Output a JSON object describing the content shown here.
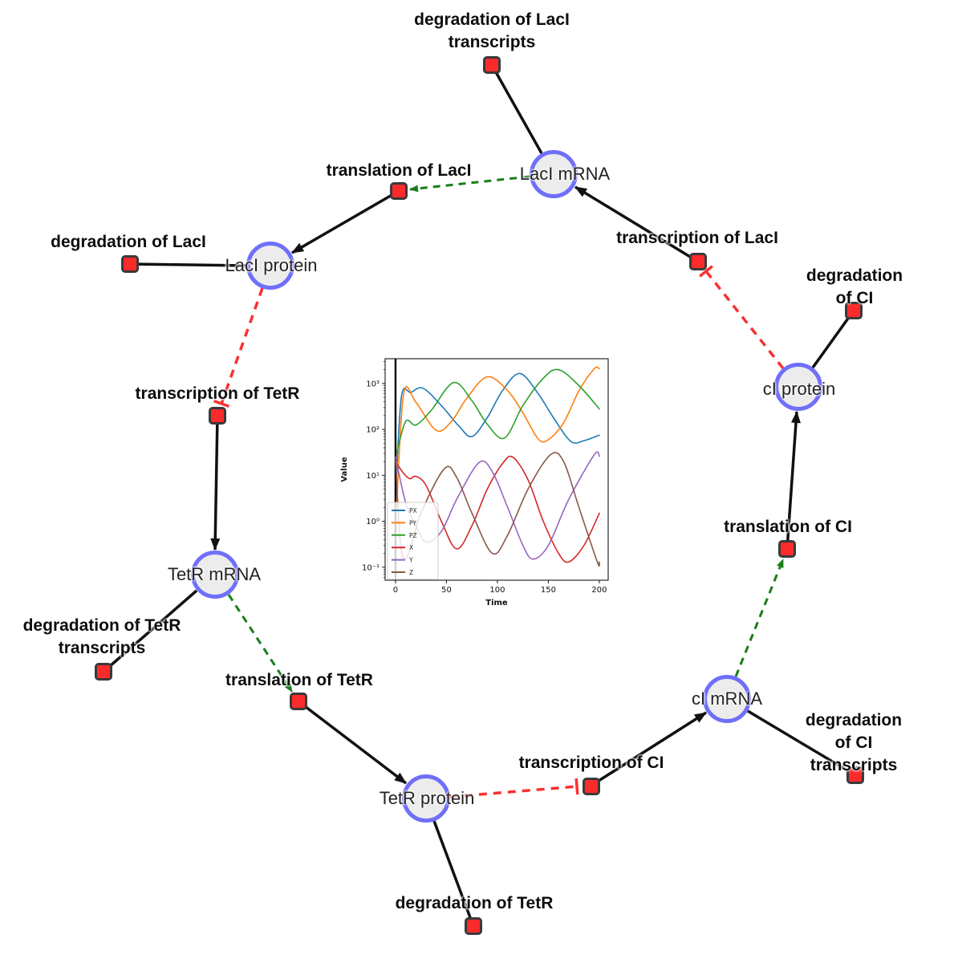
{
  "diagram": {
    "colors": {
      "species_fill": "#ececec",
      "species_border": "#6f6ffa",
      "reaction_fill": "#fb2b2b",
      "reaction_border": "#3a3a3a",
      "edge_black": "#111111",
      "edge_modifier_green": "#1a7e1a",
      "edge_inhibition_red": "#f93131"
    },
    "species": [
      {
        "id": "laci-mrna",
        "label": "LacI mRNA"
      },
      {
        "id": "laci-protein",
        "label": "LacI protein"
      },
      {
        "id": "tetr-mrna",
        "label": "TetR mRNA"
      },
      {
        "id": "tetr-protein",
        "label": "TetR protein"
      },
      {
        "id": "ci-mrna",
        "label": "cI mRNA"
      },
      {
        "id": "ci-protein",
        "label": "cI protein"
      }
    ],
    "reactions": [
      {
        "id": "deg-laci-transcripts",
        "label": "degradation of LacI\ntranscripts"
      },
      {
        "id": "translation-laci",
        "label": "translation of LacI"
      },
      {
        "id": "transcription-laci",
        "label": "transcription of LacI"
      },
      {
        "id": "deg-laci",
        "label": "degradation of LacI"
      },
      {
        "id": "deg-ci",
        "label": "degradation of CI"
      },
      {
        "id": "transcription-tetr",
        "label": "transcription of TetR"
      },
      {
        "id": "translation-ci",
        "label": "translation of CI"
      },
      {
        "id": "deg-tetr-transcripts",
        "label": "degradation of TetR\ntranscripts"
      },
      {
        "id": "translation-tetr",
        "label": "translation of TetR"
      },
      {
        "id": "transcription-ci",
        "label": "transcription of CI"
      },
      {
        "id": "deg-ci-transcripts",
        "label": "degradation of CI\ntranscripts"
      },
      {
        "id": "deg-tetr",
        "label": "degradation of TetR"
      }
    ],
    "edges": [
      {
        "from": "LacI mRNA",
        "to": "degradation of LacI transcripts",
        "type": "reactant-line"
      },
      {
        "from": "LacI mRNA",
        "to": "translation of LacI",
        "type": "modifier-green-dashed"
      },
      {
        "from": "translation of LacI",
        "to": "LacI protein",
        "type": "product-arrow"
      },
      {
        "from": "transcription of LacI",
        "to": "LacI mRNA",
        "type": "product-arrow"
      },
      {
        "from": "LacI protein",
        "to": "degradation of LacI",
        "type": "reactant-line"
      },
      {
        "from": "LacI protein",
        "to": "transcription of TetR",
        "type": "inhibition-red-dashed"
      },
      {
        "from": "transcription of TetR",
        "to": "TetR mRNA",
        "type": "product-arrow"
      },
      {
        "from": "TetR mRNA",
        "to": "degradation of TetR transcripts",
        "type": "reactant-line"
      },
      {
        "from": "TetR mRNA",
        "to": "translation of TetR",
        "type": "modifier-green-dashed"
      },
      {
        "from": "translation of TetR",
        "to": "TetR protein",
        "type": "product-arrow"
      },
      {
        "from": "TetR protein",
        "to": "degradation of TetR",
        "type": "reactant-line"
      },
      {
        "from": "TetR protein",
        "to": "transcription of CI",
        "type": "inhibition-red-dashed"
      },
      {
        "from": "transcription of CI",
        "to": "cI mRNA",
        "type": "product-arrow"
      },
      {
        "from": "cI mRNA",
        "to": "degradation of CI transcripts",
        "type": "reactant-line"
      },
      {
        "from": "cI mRNA",
        "to": "translation of CI",
        "type": "modifier-green-dashed"
      },
      {
        "from": "translation of CI",
        "to": "cI protein",
        "type": "product-arrow"
      },
      {
        "from": "cI protein",
        "to": "degradation of CI",
        "type": "reactant-line"
      },
      {
        "from": "cI protein",
        "to": "transcription of LacI",
        "type": "inhibition-red-dashed"
      }
    ]
  },
  "chart_data": {
    "type": "line",
    "title": "",
    "xlabel": "Time",
    "ylabel": "Value",
    "y_scale": "log",
    "x_ticks": [
      0,
      50,
      100,
      150,
      200
    ],
    "y_ticks": [
      {
        "log": 3,
        "label": "10³"
      },
      {
        "log": 2,
        "label": "10²"
      },
      {
        "log": 1,
        "label": "10¹"
      },
      {
        "log": 0,
        "label": "10⁰"
      },
      {
        "log": -1,
        "label": "10⁻¹"
      }
    ],
    "xlim": [
      -10.2,
      208.7
    ],
    "ylim": [
      0.052,
      3467
    ],
    "grid": false,
    "legend_position": "lower left",
    "vline_x": 0,
    "series": [
      {
        "name": "PX",
        "color": "#1f77b4",
        "points": [
          [
            1,
            10
          ],
          [
            6,
            560
          ],
          [
            15,
            640
          ],
          [
            27,
            790
          ],
          [
            45,
            330
          ],
          [
            62,
            120
          ],
          [
            75,
            70
          ],
          [
            90,
            180
          ],
          [
            105,
            700
          ],
          [
            122,
            1650
          ],
          [
            140,
            600
          ],
          [
            155,
            180
          ],
          [
            172,
            55
          ],
          [
            185,
            57
          ],
          [
            200,
            75
          ]
        ]
      },
      {
        "name": "PY",
        "color": "#ff7f0e",
        "points": [
          [
            1,
            2
          ],
          [
            8,
            600
          ],
          [
            20,
            390
          ],
          [
            40,
            95
          ],
          [
            55,
            150
          ],
          [
            70,
            480
          ],
          [
            90,
            1400
          ],
          [
            110,
            700
          ],
          [
            125,
            230
          ],
          [
            140,
            62
          ],
          [
            150,
            60
          ],
          [
            165,
            140
          ],
          [
            180,
            700
          ],
          [
            195,
            2100
          ],
          [
            200,
            2100
          ]
        ]
      },
      {
        "name": "PZ",
        "color": "#2ca02c",
        "points": [
          [
            1,
            30
          ],
          [
            10,
            150
          ],
          [
            20,
            125
          ],
          [
            35,
            260
          ],
          [
            57,
            1050
          ],
          [
            75,
            420
          ],
          [
            90,
            130
          ],
          [
            107,
            65
          ],
          [
            125,
            330
          ],
          [
            145,
            1300
          ],
          [
            160,
            2000
          ],
          [
            180,
            900
          ],
          [
            200,
            280
          ]
        ]
      },
      {
        "name": "X",
        "color": "#d62728",
        "points": [
          [
            0,
            20
          ],
          [
            8,
            11
          ],
          [
            14,
            8.5
          ],
          [
            20,
            9.5
          ],
          [
            30,
            6
          ],
          [
            45,
            1
          ],
          [
            60,
            0.25
          ],
          [
            75,
            0.8
          ],
          [
            90,
            5
          ],
          [
            105,
            18
          ],
          [
            115,
            25
          ],
          [
            130,
            8
          ],
          [
            145,
            1
          ],
          [
            160,
            0.2
          ],
          [
            170,
            0.13
          ],
          [
            185,
            0.3
          ],
          [
            200,
            1.5
          ]
        ]
      },
      {
        "name": "Y",
        "color": "#9467bd",
        "points": [
          [
            0,
            25
          ],
          [
            10,
            2.5
          ],
          [
            20,
            0.8
          ],
          [
            30,
            0.35
          ],
          [
            45,
            0.6
          ],
          [
            60,
            3
          ],
          [
            82,
            19
          ],
          [
            95,
            12
          ],
          [
            110,
            2
          ],
          [
            125,
            0.3
          ],
          [
            135,
            0.15
          ],
          [
            150,
            0.3
          ],
          [
            170,
            3
          ],
          [
            195,
            28
          ],
          [
            200,
            26
          ]
        ]
      },
      {
        "name": "Z",
        "color": "#8c564b",
        "points": [
          [
            0,
            25
          ],
          [
            5,
            0.3
          ],
          [
            12,
            0.18
          ],
          [
            25,
            1.5
          ],
          [
            48,
            14
          ],
          [
            60,
            9
          ],
          [
            75,
            1.5
          ],
          [
            95,
            0.2
          ],
          [
            110,
            0.5
          ],
          [
            130,
            5
          ],
          [
            152,
            28
          ],
          [
            165,
            20
          ],
          [
            180,
            2
          ],
          [
            198,
            0.13
          ],
          [
            200,
            0.13
          ]
        ]
      }
    ]
  }
}
